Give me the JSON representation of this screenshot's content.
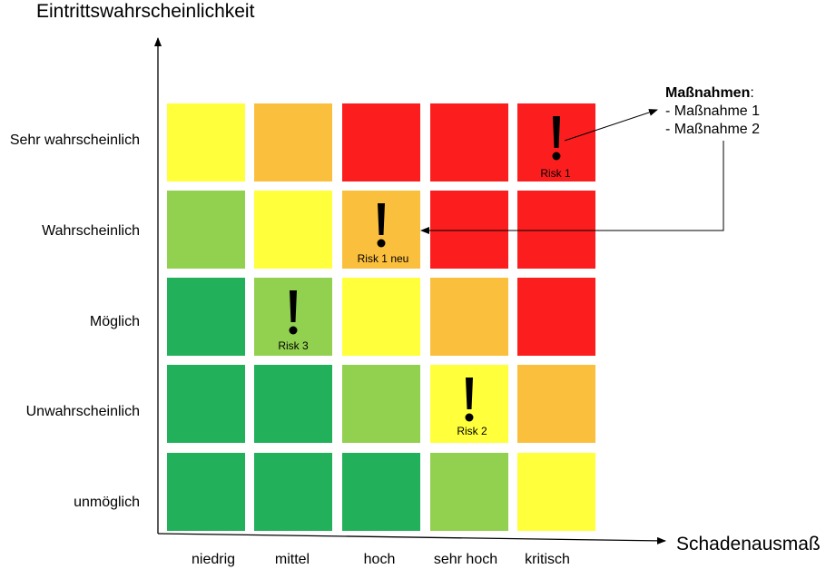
{
  "axes": {
    "y_title": "Eintrittswahrscheinlichkeit",
    "x_title": "Schadenausmaß"
  },
  "rows": [
    "Sehr wahrscheinlich",
    "Wahrscheinlich",
    "Möglich",
    "Unwahrscheinlich",
    "unmöglich"
  ],
  "cols": [
    "niedrig",
    "mittel",
    "hoch",
    "sehr hoch",
    "kritisch"
  ],
  "colors": {
    "dark_green": "#22b05a",
    "light_green": "#92d050",
    "yellow": "#ffff3c",
    "orange": "#fbbf3e",
    "red": "#fc1e1e"
  },
  "matrix": [
    [
      "yellow",
      "orange",
      "red",
      "red",
      "red"
    ],
    [
      "light_green",
      "yellow",
      "orange",
      "red",
      "red"
    ],
    [
      "dark_green",
      "light_green",
      "yellow",
      "orange",
      "red"
    ],
    [
      "dark_green",
      "dark_green",
      "light_green",
      "yellow",
      "orange"
    ],
    [
      "dark_green",
      "dark_green",
      "dark_green",
      "light_green",
      "yellow"
    ]
  ],
  "risks": [
    {
      "label": "Risk 1",
      "row": 0,
      "col": 4
    },
    {
      "label": "Risk 1 neu",
      "row": 1,
      "col": 2
    },
    {
      "label": "Risk 3",
      "row": 2,
      "col": 1
    },
    {
      "label": "Risk 2",
      "row": 3,
      "col": 3
    }
  ],
  "measures": {
    "title": "Maßnahmen",
    "suffix": ":",
    "items": [
      "- Maßnahme 1",
      "- Maßnahme 2"
    ]
  }
}
